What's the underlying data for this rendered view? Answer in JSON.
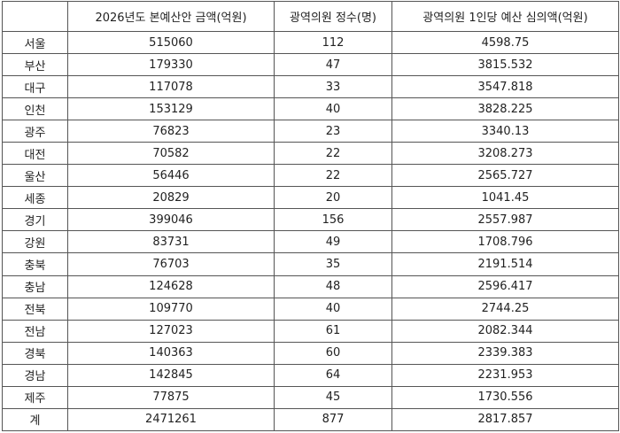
{
  "table": {
    "headers": [
      "",
      "2026년도 본예산안 금액(억원)",
      "광역의원 정수(명)",
      "광역의원 1인당 예산 심의액(억원)"
    ],
    "rows": [
      [
        "서울",
        "515060",
        "112",
        "4598.75"
      ],
      [
        "부산",
        "179330",
        "47",
        "3815.532"
      ],
      [
        "대구",
        "117078",
        "33",
        "3547.818"
      ],
      [
        "인천",
        "153129",
        "40",
        "3828.225"
      ],
      [
        "광주",
        "76823",
        "23",
        "3340.13"
      ],
      [
        "대전",
        "70582",
        "22",
        "3208.273"
      ],
      [
        "울산",
        "56446",
        "22",
        "2565.727"
      ],
      [
        "세종",
        "20829",
        "20",
        "1041.45"
      ],
      [
        "경기",
        "399046",
        "156",
        "2557.987"
      ],
      [
        "강원",
        "83731",
        "49",
        "1708.796"
      ],
      [
        "충북",
        "76703",
        "35",
        "2191.514"
      ],
      [
        "충남",
        "124628",
        "48",
        "2596.417"
      ],
      [
        "전북",
        "109770",
        "40",
        "2744.25"
      ],
      [
        "전남",
        "127023",
        "61",
        "2082.344"
      ],
      [
        "경북",
        "140363",
        "60",
        "2339.383"
      ],
      [
        "경남",
        "142845",
        "64",
        "2231.953"
      ],
      [
        "제주",
        "77875",
        "45",
        "1730.556"
      ],
      [
        "계",
        "2471261",
        "877",
        "2817.857"
      ]
    ]
  }
}
